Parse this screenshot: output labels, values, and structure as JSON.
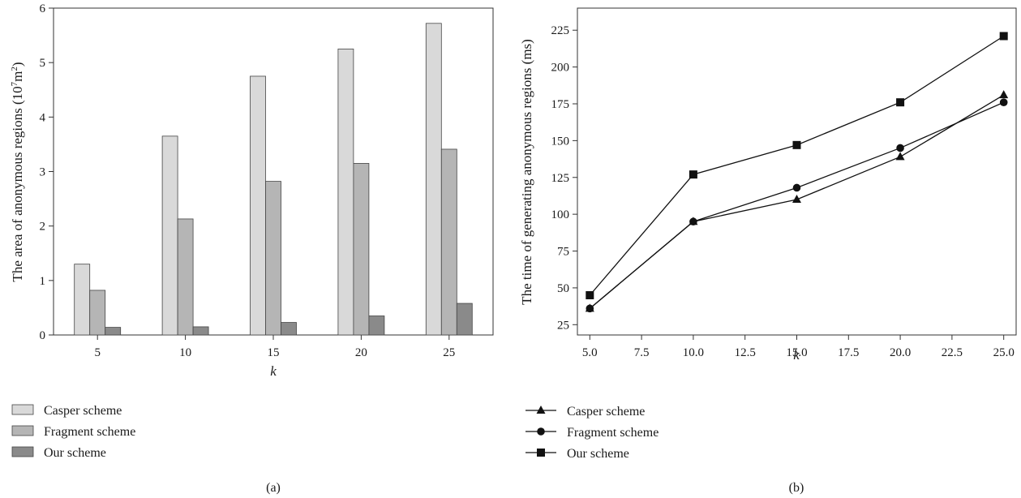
{
  "chart_data": [
    {
      "type": "bar",
      "caption": "(a)",
      "xlabel": "k",
      "ylabel_prefix": "The area of anonymous regions (10",
      "ylabel_sup1": "7",
      "ylabel_mid": "m",
      "ylabel_sup2": "2",
      "ylabel_suffix": ")",
      "categories": [
        "5",
        "10",
        "15",
        "20",
        "25"
      ],
      "ylim": [
        0,
        6
      ],
      "yticks": [
        "0",
        "1",
        "2",
        "3",
        "4",
        "5",
        "6"
      ],
      "series": [
        {
          "name": "Casper scheme",
          "color": "#d9d9d9",
          "values": [
            1.3,
            3.65,
            4.75,
            5.25,
            5.72
          ]
        },
        {
          "name": "Fragment scheme",
          "color": "#b5b5b5",
          "values": [
            0.82,
            2.13,
            2.82,
            3.15,
            3.41
          ]
        },
        {
          "name": "Our scheme",
          "color": "#8a8a8a",
          "values": [
            0.14,
            0.15,
            0.23,
            0.35,
            0.58
          ]
        }
      ]
    },
    {
      "type": "line",
      "caption": "(b)",
      "xlabel": "k",
      "ylabel": "The time of generating anonymous regions (ms)",
      "xlim": [
        4.4,
        25.6
      ],
      "ylim": [
        18,
        240
      ],
      "xticks": [
        "5.0",
        "7.5",
        "10.0",
        "12.5",
        "15.0",
        "17.5",
        "20.0",
        "22.5",
        "25.0"
      ],
      "yticks": [
        "25",
        "50",
        "75",
        "100",
        "125",
        "150",
        "175",
        "200",
        "225"
      ],
      "x": [
        5,
        10,
        15,
        20,
        25
      ],
      "series": [
        {
          "name": "Casper scheme",
          "marker": "triangle",
          "values": [
            36,
            95,
            110,
            139,
            181
          ]
        },
        {
          "name": "Fragment scheme",
          "marker": "circle",
          "values": [
            36,
            95,
            118,
            145,
            176
          ]
        },
        {
          "name": "Our scheme",
          "marker": "square",
          "values": [
            45,
            127,
            147,
            176,
            221
          ]
        }
      ]
    }
  ]
}
